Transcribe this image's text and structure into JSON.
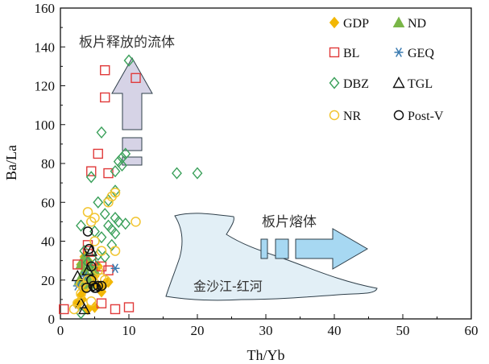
{
  "chart_data": {
    "type": "scatter",
    "title": "",
    "xlabel": "Th/Yb",
    "ylabel": "Ba/La",
    "xlim": [
      0,
      60
    ],
    "ylim": [
      0,
      160
    ],
    "xticks": [
      0,
      10,
      20,
      30,
      40,
      50,
      60
    ],
    "yticks": [
      0,
      20,
      40,
      60,
      80,
      100,
      120,
      140,
      160
    ],
    "grid": false,
    "legend_position": "top-right",
    "series": [
      {
        "name": "GDP",
        "marker": "diamond-filled",
        "color": "#f2b705",
        "points": [
          [
            2.5,
            8
          ],
          [
            3,
            12
          ],
          [
            3.5,
            15
          ],
          [
            4,
            18
          ],
          [
            4.5,
            20
          ],
          [
            5,
            22
          ],
          [
            5.5,
            17
          ],
          [
            6,
            14
          ],
          [
            3,
            28
          ],
          [
            4,
            30
          ],
          [
            2.8,
            18
          ],
          [
            3.2,
            10
          ],
          [
            6.5,
            18
          ],
          [
            7,
            19
          ],
          [
            5,
            6
          ],
          [
            4,
            5
          ],
          [
            3.5,
            32
          ],
          [
            5.5,
            27
          ]
        ]
      },
      {
        "name": "ND",
        "marker": "triangle-filled",
        "color": "#7ab648",
        "points": [
          [
            3,
            28
          ],
          [
            3.5,
            25
          ],
          [
            4,
            22
          ],
          [
            3.2,
            30
          ],
          [
            4.5,
            27
          ],
          [
            2.8,
            20
          ],
          [
            3.8,
            32
          ],
          [
            4.2,
            18
          ],
          [
            5,
            25
          ]
        ]
      },
      {
        "name": "BL",
        "marker": "square-open",
        "color": "#e03a3a",
        "points": [
          [
            0.5,
            5
          ],
          [
            2.5,
            28
          ],
          [
            4,
            35
          ],
          [
            4.5,
            30
          ],
          [
            4.5,
            76
          ],
          [
            5.5,
            85
          ],
          [
            6,
            27
          ],
          [
            6,
            8
          ],
          [
            6.5,
            128
          ],
          [
            6.5,
            114
          ],
          [
            7,
            75
          ],
          [
            7,
            25
          ],
          [
            8,
            5
          ],
          [
            10,
            6
          ],
          [
            11,
            124
          ],
          [
            4,
            38
          ]
        ]
      },
      {
        "name": "GEQ",
        "marker": "asterisk",
        "color": "#3a7ab0",
        "points": [
          [
            2.5,
            17
          ],
          [
            3.5,
            22
          ],
          [
            8,
            26
          ]
        ]
      },
      {
        "name": "DBZ",
        "marker": "diamond-open",
        "color": "#3aa05a",
        "points": [
          [
            3,
            3
          ],
          [
            3,
            48
          ],
          [
            3.5,
            35
          ],
          [
            4,
            29
          ],
          [
            4.5,
            73
          ],
          [
            5,
            28
          ],
          [
            5,
            45
          ],
          [
            5.5,
            33
          ],
          [
            5.5,
            60
          ],
          [
            6,
            42
          ],
          [
            6,
            96
          ],
          [
            6.5,
            32
          ],
          [
            6.5,
            54
          ],
          [
            7,
            61
          ],
          [
            7,
            48
          ],
          [
            7.5,
            38
          ],
          [
            7.5,
            46
          ],
          [
            8,
            76
          ],
          [
            8,
            52
          ],
          [
            8,
            44
          ],
          [
            8,
            66
          ],
          [
            8.5,
            81
          ],
          [
            8.5,
            50
          ],
          [
            9,
            79
          ],
          [
            9,
            83
          ],
          [
            9.5,
            85
          ],
          [
            10,
            133
          ],
          [
            9.5,
            49
          ],
          [
            17,
            75
          ],
          [
            20,
            75
          ]
        ]
      },
      {
        "name": "TGL",
        "marker": "triangle-open",
        "color": "#111111",
        "points": [
          [
            2.5,
            22
          ],
          [
            3,
            8
          ],
          [
            3.5,
            5
          ],
          [
            4,
            25
          ],
          [
            4.5,
            35
          ]
        ]
      },
      {
        "name": "NR",
        "marker": "circle-open",
        "color": "#f2c531",
        "points": [
          [
            2,
            5
          ],
          [
            2.5,
            8
          ],
          [
            3,
            13
          ],
          [
            3.5,
            17
          ],
          [
            4,
            20
          ],
          [
            4,
            55
          ],
          [
            4.5,
            50
          ],
          [
            5,
            52
          ],
          [
            5,
            40
          ],
          [
            5.5,
            25
          ],
          [
            6,
            21
          ],
          [
            6.5,
            20
          ],
          [
            7,
            60
          ],
          [
            7.5,
            63
          ],
          [
            8,
            35
          ],
          [
            8,
            65
          ],
          [
            11,
            50
          ],
          [
            6,
            35
          ],
          [
            4.5,
            9
          ],
          [
            3,
            18
          ]
        ]
      },
      {
        "name": "Post-V",
        "marker": "circle-open",
        "color": "#111111",
        "points": [
          [
            4,
            45
          ],
          [
            4.2,
            36
          ],
          [
            4.5,
            27
          ],
          [
            4.5,
            20
          ],
          [
            4.8,
            17
          ],
          [
            5,
            16
          ],
          [
            5.2,
            16
          ],
          [
            5.5,
            17
          ],
          [
            6,
            17
          ],
          [
            3.8,
            16
          ]
        ]
      }
    ],
    "annotations": {
      "slab_fluid_label": "板片释放的流体",
      "slab_melt_label": "板片熔体",
      "region_label": "金沙江-红河"
    }
  },
  "colors": {
    "arrow_slab_fluid_fill": "#d6d3e6",
    "arrow_slab_melt_fill": "#a7d8f2",
    "region_fill": "#e2eff6",
    "axis": "#111111"
  }
}
